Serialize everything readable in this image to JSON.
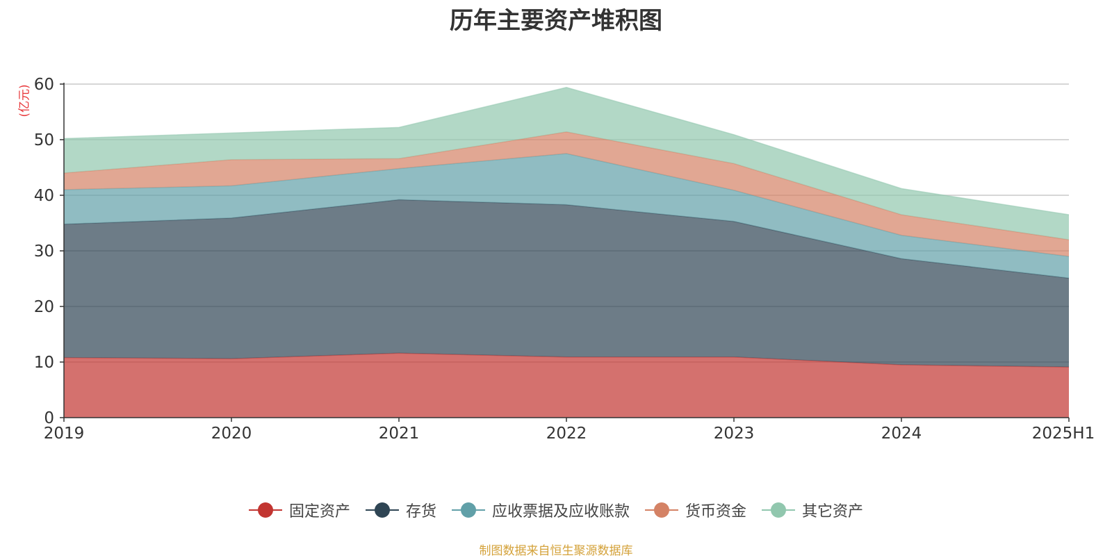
{
  "title": "历年主要资产堆积图",
  "unit": "(亿元)",
  "source": "制图数据来自恒生聚源数据库",
  "chart_data": {
    "type": "area",
    "stacked": true,
    "title": "历年主要资产堆积图",
    "ylabel": "(亿元)",
    "xlabel": "",
    "x": [
      "2019",
      "2020",
      "2021",
      "2022",
      "2023",
      "2024",
      "2025H1"
    ],
    "ylim": [
      0,
      60
    ],
    "yticks": [
      "0",
      "10",
      "20",
      "30",
      "40",
      "50",
      "60"
    ],
    "grid": true,
    "legend_position": "bottom",
    "series": [
      {
        "name": "固定资产",
        "color": "#c23531",
        "values": [
          10.8,
          10.6,
          11.6,
          10.9,
          10.9,
          9.5,
          9.1
        ]
      },
      {
        "name": "存货",
        "color": "#2f4554",
        "values": [
          24.0,
          25.3,
          27.6,
          27.4,
          24.4,
          19.1,
          16.0
        ]
      },
      {
        "name": "应收票据及应收账款",
        "color": "#61a0a8",
        "values": [
          6.2,
          5.8,
          5.6,
          9.2,
          5.6,
          4.2,
          3.9
        ]
      },
      {
        "name": "货币资金",
        "color": "#d48265",
        "values": [
          3.0,
          4.7,
          1.8,
          3.9,
          4.8,
          3.7,
          3.0
        ]
      },
      {
        "name": "其它资产",
        "color": "#91c7ae",
        "values": [
          6.2,
          4.8,
          5.6,
          8.0,
          5.2,
          4.7,
          4.5
        ]
      }
    ]
  }
}
